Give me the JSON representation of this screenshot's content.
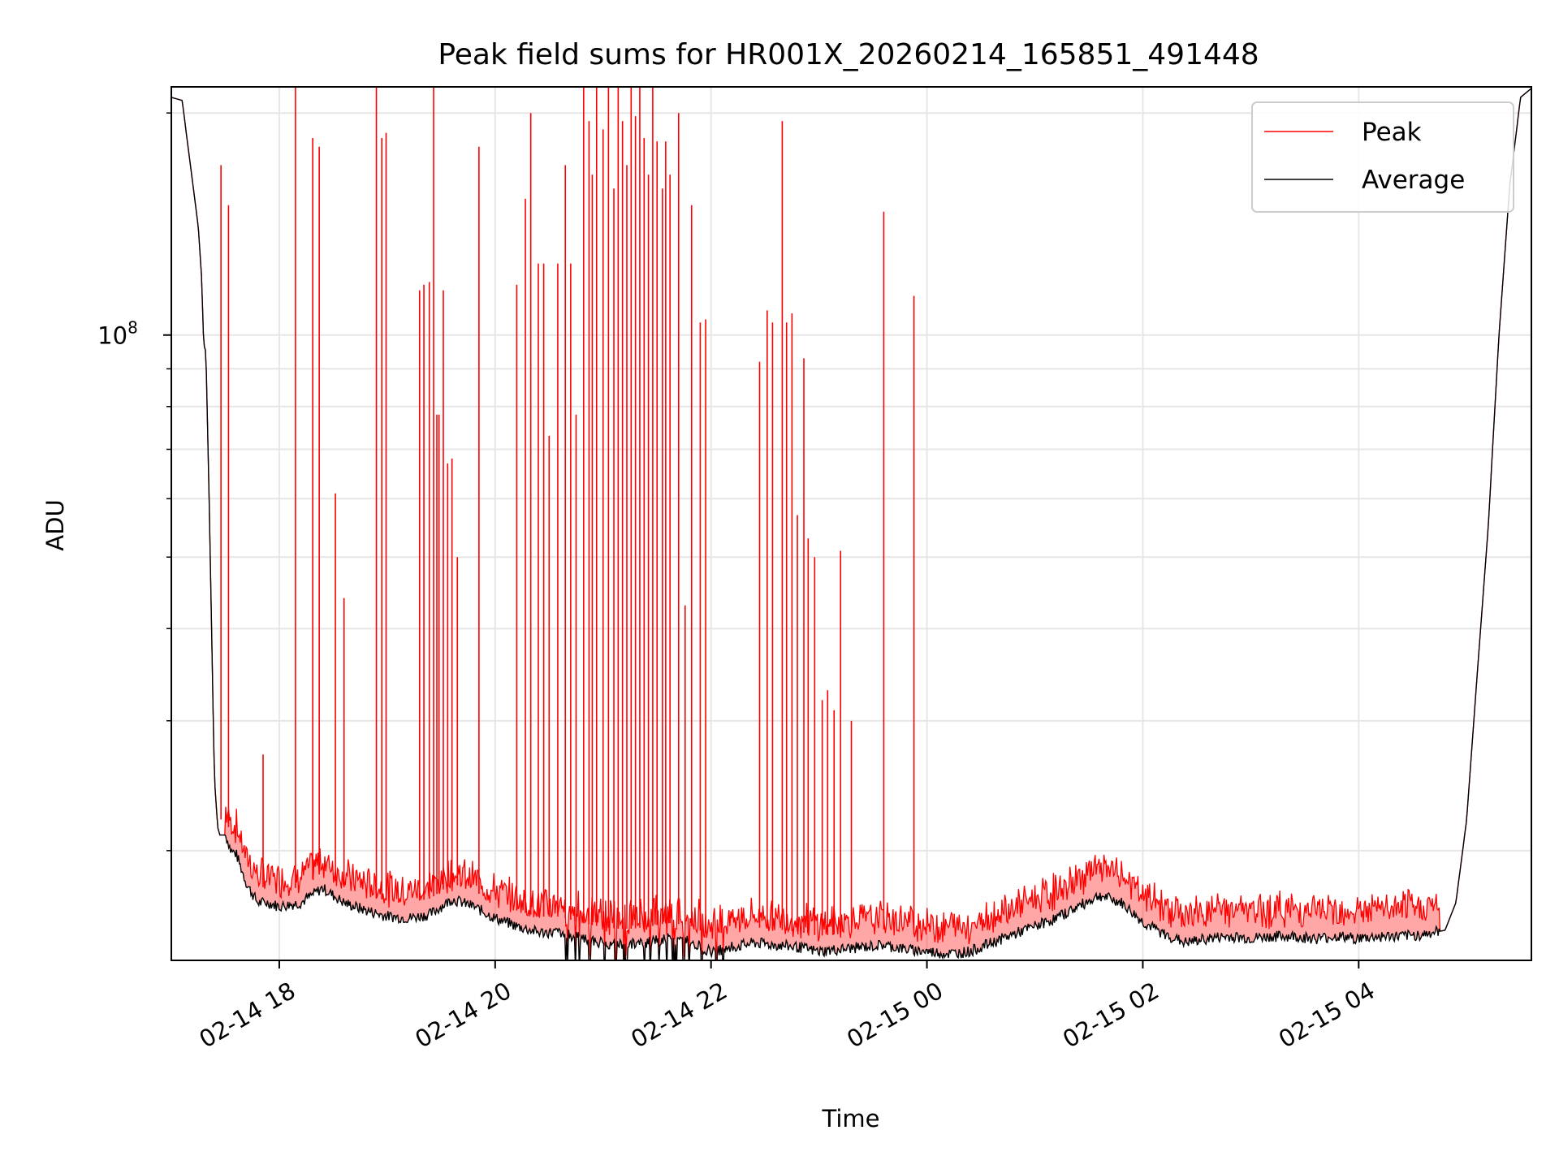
{
  "chart_data": {
    "type": "line",
    "title": "Peak field sums for HR001X_20260214_165851_491448",
    "xlabel": "Time",
    "ylabel": "ADU",
    "yscale": "log",
    "ylim": [
      14200000,
      217000000
    ],
    "xlim_hours": [
      -1.0,
      11.6
    ],
    "grid": true,
    "legend": {
      "position": "top-right",
      "entries": [
        "Peak",
        "Average"
      ]
    },
    "x_ticks": [
      {
        "label": "02-14 18",
        "hour": 0
      },
      {
        "label": "02-14 20",
        "hour": 2
      },
      {
        "label": "02-14 22",
        "hour": 4
      },
      {
        "label": "02-15 00",
        "hour": 6
      },
      {
        "label": "02-15 02",
        "hour": 8
      },
      {
        "label": "02-15 04",
        "hour": 10
      }
    ],
    "y_tick_major": {
      "base": "10",
      "exp": "8",
      "value": 100000000
    },
    "colors": {
      "Peak": "#ff0000",
      "Average": "#000000",
      "grid": "#e6e6e6"
    },
    "series": [
      {
        "name": "Average",
        "hours": [
          -1.0,
          -0.9,
          -0.8,
          -0.75,
          -0.72,
          -0.7,
          -0.68,
          -0.65,
          -0.62,
          -0.6,
          -0.57,
          -0.55,
          -0.5,
          -0.47,
          -0.45,
          -0.4,
          -0.3,
          -0.2,
          -0.1,
          0.0,
          0.2,
          0.4,
          0.6,
          0.8,
          1.0,
          1.2,
          1.4,
          1.6,
          1.8,
          2.0,
          2.2,
          2.4,
          2.6,
          2.8,
          3.0,
          3.2,
          3.4,
          3.6,
          3.8,
          4.0,
          4.2,
          4.4,
          4.6,
          4.8,
          5.0,
          5.2,
          5.4,
          5.6,
          5.8,
          6.0,
          6.2,
          6.4,
          6.6,
          6.8,
          7.0,
          7.2,
          7.4,
          7.6,
          7.8,
          8.0,
          8.2,
          8.4,
          8.6,
          8.8,
          9.0,
          9.2,
          9.4,
          9.6,
          9.8,
          10.0,
          10.2,
          10.4,
          10.6,
          10.8,
          10.9,
          11.0,
          11.1,
          11.2,
          11.3,
          11.4,
          11.5,
          11.6
        ],
        "values": [
          210000000,
          208000000,
          160000000,
          140000000,
          120000000,
          97000000,
          95000000,
          60000000,
          35000000,
          25000000,
          21500000,
          21000000,
          21000000,
          20500000,
          20000000,
          19800000,
          18000000,
          17000000,
          17000000,
          16800000,
          17000000,
          17800000,
          17000000,
          16600000,
          16300000,
          16200000,
          16400000,
          17200000,
          16800000,
          16200000,
          15800000,
          15500000,
          15500000,
          15200000,
          15000000,
          14900000,
          15000000,
          15200000,
          15100000,
          14600000,
          14800000,
          15000000,
          14900000,
          14800000,
          14600000,
          14700000,
          14800000,
          14900000,
          14700000,
          14600000,
          14500000,
          14600000,
          15000000,
          15400000,
          15800000,
          16200000,
          16800000,
          17400000,
          17000000,
          16000000,
          15400000,
          15000000,
          15200000,
          15300000,
          15200000,
          15300000,
          15300000,
          15200000,
          15300000,
          15200000,
          15300000,
          15300000,
          15400000,
          15600000,
          17000000,
          22000000,
          35000000,
          55000000,
          100000000,
          160000000,
          210000000,
          216000000
        ]
      },
      {
        "name": "Peak",
        "spikes_hours": [
          -0.54,
          -0.47,
          -0.15,
          0.15,
          0.31,
          0.37,
          0.52,
          0.6,
          0.9,
          0.95,
          0.99,
          1.3,
          1.34,
          1.39,
          1.43,
          1.46,
          1.48,
          1.52,
          1.56,
          1.6,
          1.65,
          1.85,
          2.2,
          2.28,
          2.33,
          2.4,
          2.45,
          2.5,
          2.58,
          2.65,
          2.7,
          2.75,
          2.82,
          2.87,
          2.9,
          2.94,
          3.0,
          3.05,
          3.1,
          3.14,
          3.18,
          3.22,
          3.26,
          3.3,
          3.34,
          3.38,
          3.42,
          3.46,
          3.5,
          3.55,
          3.58,
          3.62,
          3.7,
          3.76,
          3.82,
          3.9,
          3.95,
          4.45,
          4.52,
          4.57,
          4.66,
          4.7,
          4.75,
          4.8,
          4.86,
          4.9,
          4.96,
          5.03,
          5.08,
          5.14,
          5.2,
          5.3,
          5.6,
          5.88
        ],
        "spikes_values": [
          170000000,
          150000000,
          27000000,
          217000000,
          185000000,
          180000000,
          61000000,
          44000000,
          217000000,
          185000000,
          188000000,
          115000000,
          117000000,
          118000000,
          217000000,
          78000000,
          78000000,
          115000000,
          67000000,
          68000000,
          50000000,
          180000000,
          117000000,
          153000000,
          200000000,
          125000000,
          125000000,
          73000000,
          125000000,
          170000000,
          125000000,
          78000000,
          217000000,
          195000000,
          165000000,
          217000000,
          190000000,
          217000000,
          158000000,
          217000000,
          195000000,
          170000000,
          217000000,
          198000000,
          217000000,
          185000000,
          165000000,
          217000000,
          183000000,
          158000000,
          183000000,
          165000000,
          200000000,
          43000000,
          150000000,
          104000000,
          105000000,
          92000000,
          108000000,
          104000000,
          195000000,
          104000000,
          107000000,
          57000000,
          93000000,
          53000000,
          50000000,
          32000000,
          33000000,
          31000000,
          51000000,
          30000000,
          147000000,
          113000000
        ]
      }
    ]
  }
}
